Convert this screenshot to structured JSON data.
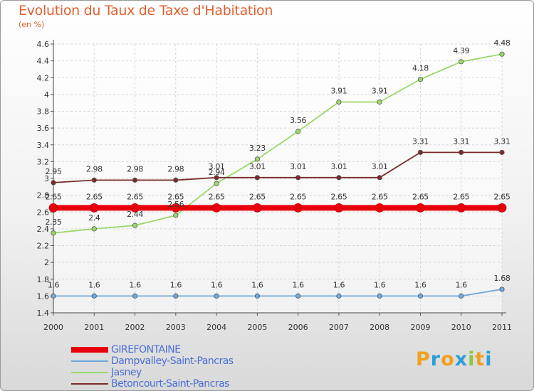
{
  "title": "Evolution du Taux de Taxe d'Habitation",
  "unit_label": "(en %)",
  "logo": {
    "text": "Proxiti",
    "letters": [
      {
        "ch": "P",
        "color": "#f0a020"
      },
      {
        "ch": "r",
        "color": "#2aa0d8"
      },
      {
        "ch": "o",
        "color": "#f0a020"
      },
      {
        "ch": "x",
        "color": "#2aa0d8"
      },
      {
        "ch": "i",
        "color": "#8cc63f"
      },
      {
        "ch": "t",
        "color": "#f0a020"
      },
      {
        "ch": "i",
        "color": "#2aa0d8"
      }
    ]
  },
  "chart_data": {
    "type": "line",
    "title": "Evolution du Taux de Taxe d'Habitation",
    "ylabel": "(en %)",
    "xlabel": "",
    "x": [
      "2000",
      "2001",
      "2002",
      "2003",
      "2004",
      "2005",
      "2006",
      "2007",
      "2008",
      "2009",
      "2010",
      "2011"
    ],
    "ylim": [
      1.4,
      4.6
    ],
    "yticks": [
      1.4,
      1.6,
      1.8,
      2,
      2.2,
      2.4,
      2.6,
      2.8,
      3,
      3.2,
      3.4,
      3.6,
      3.8,
      4,
      4.2,
      4.4,
      4.6
    ],
    "ytick_labels": [
      "1.4",
      "1.6",
      "1.8",
      "2",
      "2.2",
      "2.4",
      "2.6",
      "2.8",
      "3",
      "3.2",
      "3.4",
      "3.6",
      "3.8",
      "4",
      "4.2",
      "4.4",
      "4.6"
    ],
    "grid": true,
    "legend_position": "bottom-left",
    "series": [
      {
        "name": "GIREFONTAINE",
        "color": "#e8000b",
        "thick": true,
        "values": [
          2.65,
          2.65,
          2.65,
          2.65,
          2.65,
          2.65,
          2.65,
          2.65,
          2.65,
          2.65,
          2.65,
          2.65
        ],
        "labels": [
          "2.65",
          "2.65",
          "2.65",
          "2.65",
          "2.65",
          "2.65",
          "2.65",
          "2.65",
          "2.65",
          "2.65",
          "2.65",
          "2.65"
        ]
      },
      {
        "name": "Dampvalley-Saint-Pancras",
        "color": "#6fa8dc",
        "thick": false,
        "values": [
          1.6,
          1.6,
          1.6,
          1.6,
          1.6,
          1.6,
          1.6,
          1.6,
          1.6,
          1.6,
          1.6,
          1.68
        ],
        "labels": [
          "1.6",
          "1.6",
          "1.6",
          "1.6",
          "1.6",
          "1.6",
          "1.6",
          "1.6",
          "1.6",
          "1.6",
          "1.6",
          "1.68"
        ]
      },
      {
        "name": "Jasney",
        "color": "#9ad86a",
        "thick": false,
        "values": [
          2.35,
          2.4,
          2.44,
          2.56,
          2.94,
          3.23,
          3.56,
          3.91,
          3.91,
          4.18,
          4.39,
          4.48
        ],
        "labels": [
          "2.35",
          "2.4",
          "2.44",
          "2.56",
          "2.94",
          "3.23",
          "3.56",
          "3.91",
          "3.91",
          "4.18",
          "4.39",
          "4.48"
        ]
      },
      {
        "name": "Betoncourt-Saint-Pancras",
        "color": "#7a2a2a",
        "thick": false,
        "values": [
          2.95,
          2.98,
          2.98,
          2.98,
          3.01,
          3.01,
          3.01,
          3.01,
          3.01,
          3.31,
          3.31,
          3.31
        ],
        "labels": [
          "2.95",
          "2.98",
          "2.98",
          "2.98",
          "3.01",
          "3.01",
          "3.01",
          "3.01",
          "3.01",
          "3.31",
          "3.31",
          "3.31"
        ]
      }
    ]
  }
}
